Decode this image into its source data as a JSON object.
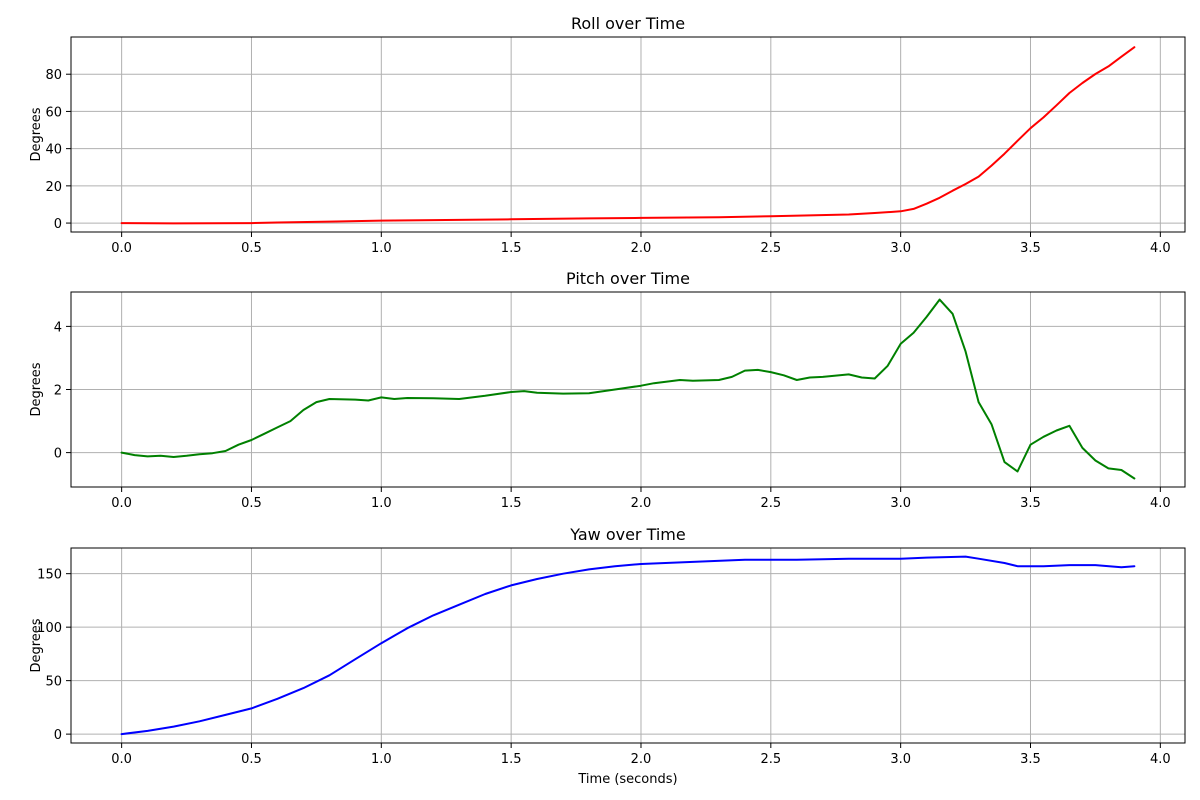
{
  "chart_data": [
    {
      "type": "line",
      "title": "Roll over Time",
      "xlabel": "",
      "ylabel": "Degrees",
      "xlim": [
        -0.195,
        4.095
      ],
      "ylim": [
        -4.8,
        100
      ],
      "xticks": [
        0.0,
        0.5,
        1.0,
        1.5,
        2.0,
        2.5,
        3.0,
        3.5,
        4.0
      ],
      "xtick_labels": [
        "0.0",
        "0.5",
        "1.0",
        "1.5",
        "2.0",
        "2.5",
        "3.0",
        "3.5",
        "4.0"
      ],
      "yticks": [
        0,
        20,
        40,
        60,
        80
      ],
      "ytick_labels": [
        "0",
        "20",
        "40",
        "60",
        "80"
      ],
      "grid": true,
      "color": "#ff0000",
      "x": [
        0.0,
        0.2,
        0.5,
        0.6,
        0.8,
        1.0,
        1.2,
        1.5,
        1.8,
        2.0,
        2.3,
        2.5,
        2.8,
        2.9,
        3.0,
        3.05,
        3.1,
        3.15,
        3.2,
        3.25,
        3.3,
        3.35,
        3.4,
        3.45,
        3.5,
        3.55,
        3.6,
        3.65,
        3.7,
        3.75,
        3.8,
        3.85,
        3.9
      ],
      "y": [
        0.0,
        -0.2,
        0.0,
        0.3,
        0.8,
        1.3,
        1.6,
        2.0,
        2.5,
        2.8,
        3.1,
        3.7,
        4.6,
        5.4,
        6.3,
        7.6,
        10.4,
        13.6,
        17.4,
        21.0,
        25.0,
        30.9,
        37.3,
        44.2,
        51.0,
        56.8,
        63.3,
        69.9,
        75.3,
        80.1,
        84.2,
        89.4,
        94.5
      ]
    },
    {
      "type": "line",
      "title": "Pitch over Time",
      "xlabel": "",
      "ylabel": "Degrees",
      "xlim": [
        -0.195,
        4.095
      ],
      "ylim": [
        -1.09,
        5.09
      ],
      "xticks": [
        0.0,
        0.5,
        1.0,
        1.5,
        2.0,
        2.5,
        3.0,
        3.5,
        4.0
      ],
      "xtick_labels": [
        "0.0",
        "0.5",
        "1.0",
        "1.5",
        "2.0",
        "2.5",
        "3.0",
        "3.5",
        "4.0"
      ],
      "yticks": [
        0,
        2,
        4
      ],
      "ytick_labels": [
        "0",
        "2",
        "4"
      ],
      "grid": true,
      "color": "#008000",
      "x": [
        0.0,
        0.05,
        0.1,
        0.15,
        0.2,
        0.25,
        0.3,
        0.35,
        0.4,
        0.45,
        0.5,
        0.55,
        0.6,
        0.65,
        0.7,
        0.75,
        0.8,
        0.9,
        0.95,
        1.0,
        1.05,
        1.1,
        1.2,
        1.3,
        1.4,
        1.5,
        1.55,
        1.6,
        1.7,
        1.8,
        1.9,
        2.0,
        2.05,
        2.1,
        2.15,
        2.2,
        2.3,
        2.35,
        2.4,
        2.45,
        2.5,
        2.55,
        2.6,
        2.65,
        2.7,
        2.8,
        2.85,
        2.9,
        2.95,
        3.0,
        3.05,
        3.1,
        3.15,
        3.2,
        3.25,
        3.3,
        3.35,
        3.4,
        3.45,
        3.5,
        3.55,
        3.6,
        3.65,
        3.7,
        3.75,
        3.8,
        3.85,
        3.9
      ],
      "y": [
        0.0,
        -0.08,
        -0.12,
        -0.1,
        -0.14,
        -0.1,
        -0.05,
        -0.02,
        0.05,
        0.25,
        0.4,
        0.6,
        0.8,
        1.0,
        1.35,
        1.6,
        1.7,
        1.68,
        1.65,
        1.75,
        1.7,
        1.73,
        1.72,
        1.7,
        1.8,
        1.92,
        1.95,
        1.9,
        1.87,
        1.88,
        2.0,
        2.12,
        2.2,
        2.25,
        2.3,
        2.28,
        2.3,
        2.4,
        2.6,
        2.62,
        2.55,
        2.45,
        2.3,
        2.38,
        2.4,
        2.48,
        2.38,
        2.35,
        2.75,
        3.45,
        3.8,
        4.3,
        4.85,
        4.4,
        3.2,
        1.6,
        0.9,
        -0.3,
        -0.6,
        0.25,
        0.5,
        0.7,
        0.85,
        0.15,
        -0.25,
        -0.5,
        -0.55,
        -0.82
      ]
    },
    {
      "type": "line",
      "title": "Yaw over Time",
      "xlabel": "Time (seconds)",
      "ylabel": "Degrees",
      "xlim": [
        -0.195,
        4.095
      ],
      "ylim": [
        -8.3,
        174
      ],
      "xticks": [
        0.0,
        0.5,
        1.0,
        1.5,
        2.0,
        2.5,
        3.0,
        3.5,
        4.0
      ],
      "xtick_labels": [
        "0.0",
        "0.5",
        "1.0",
        "1.5",
        "2.0",
        "2.5",
        "3.0",
        "3.5",
        "4.0"
      ],
      "yticks": [
        0,
        50,
        100,
        150
      ],
      "ytick_labels": [
        "0",
        "50",
        "100",
        "150"
      ],
      "grid": true,
      "color": "#0000ff",
      "x": [
        0.0,
        0.1,
        0.2,
        0.3,
        0.4,
        0.5,
        0.6,
        0.7,
        0.8,
        0.9,
        1.0,
        1.1,
        1.2,
        1.3,
        1.4,
        1.5,
        1.6,
        1.7,
        1.8,
        1.9,
        2.0,
        2.2,
        2.4,
        2.6,
        2.8,
        3.0,
        3.1,
        3.25,
        3.3,
        3.4,
        3.45,
        3.55,
        3.65,
        3.75,
        3.85,
        3.9
      ],
      "y": [
        0,
        3,
        7,
        12,
        18,
        24,
        33,
        43,
        55,
        70,
        85,
        99,
        111,
        121,
        131,
        139,
        145,
        150,
        154,
        157,
        159,
        161,
        163,
        163,
        164,
        164,
        165,
        166,
        164,
        160,
        157,
        157,
        158,
        158,
        156,
        157
      ]
    }
  ]
}
